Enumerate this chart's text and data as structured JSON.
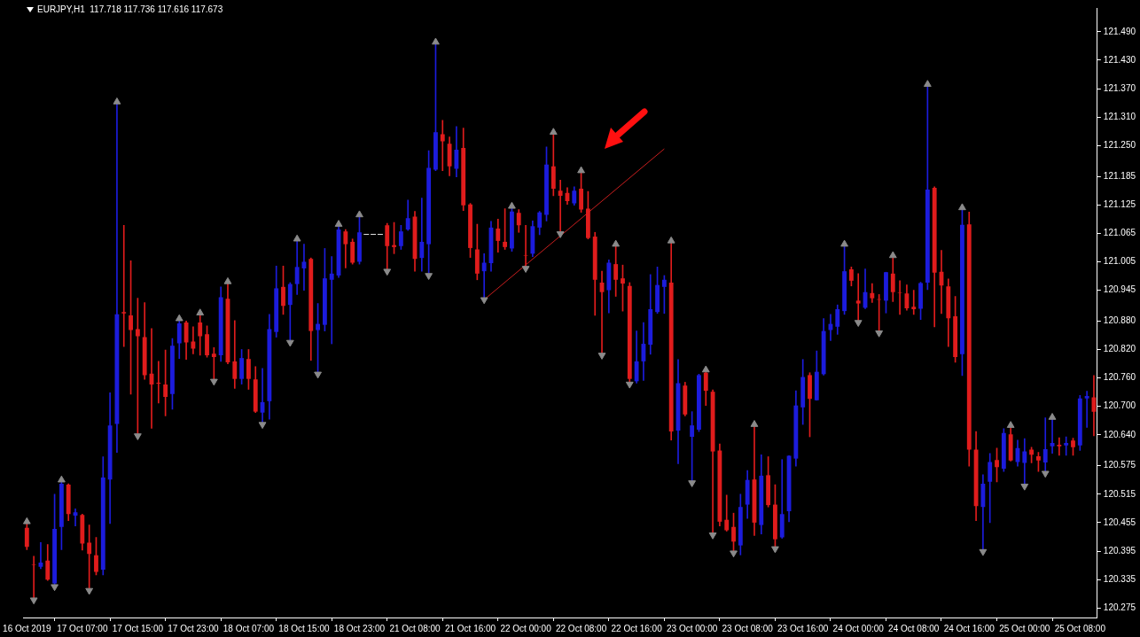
{
  "chart_data": {
    "type": "candlestick",
    "title": "EURJPY,H1  117.718 117.736 117.616 117.673",
    "categories": [
      "16 Oct 2019",
      null,
      null,
      null,
      null,
      null,
      null,
      null,
      "17 Oct 07:00",
      null,
      null,
      null,
      null,
      null,
      null,
      null,
      "17 Oct 15:00",
      null,
      null,
      null,
      null,
      null,
      null,
      null,
      "17 Oct 23:00",
      null,
      null,
      null,
      null,
      null,
      null,
      null,
      "18 Oct 07:00",
      null,
      null,
      null,
      null,
      null,
      null,
      null,
      "18 Oct 15:00",
      null,
      null,
      null,
      null,
      null,
      null,
      null,
      "18 Oct 23:00",
      null,
      null,
      null,
      null,
      null,
      null,
      null,
      "21 Oct 08:00",
      null,
      null,
      null,
      null,
      null,
      null,
      null,
      "21 Oct 16:00",
      null,
      null,
      null,
      null,
      null,
      null,
      null,
      "22 Oct 00:00",
      null,
      null,
      null,
      null,
      null,
      null,
      null,
      "22 Oct 08:00",
      null,
      null,
      null,
      null,
      null,
      null,
      null,
      "22 Oct 16:00",
      null,
      null,
      null,
      null,
      null,
      null,
      null,
      "23 Oct 00:00",
      null,
      null,
      null,
      null,
      null,
      null,
      null,
      "23 Oct 08:00",
      null,
      null,
      null,
      null,
      null,
      null,
      null,
      "23 Oct 16:00",
      null,
      null,
      null,
      null,
      null,
      null,
      null,
      "24 Oct 00:00",
      null,
      null,
      null,
      null,
      null,
      null,
      null,
      "24 Oct 08:00",
      null,
      null,
      null,
      null,
      null,
      null,
      null,
      "24 Oct 16:00",
      null,
      null,
      null,
      null,
      null,
      null,
      null,
      "25 Oct 00:00",
      null,
      null,
      null,
      null,
      null,
      null,
      null,
      "25 Oct 08:00",
      null,
      null
    ],
    "ohlc": [
      [
        120.444,
        120.457,
        120.398,
        120.404
      ],
      [
        120.366,
        120.384,
        120.292,
        120.365
      ],
      [
        120.362,
        120.413,
        120.358,
        120.371
      ],
      [
        120.375,
        120.409,
        120.333,
        120.335
      ],
      [
        120.327,
        120.515,
        120.32,
        120.442
      ],
      [
        120.446,
        120.545,
        120.398,
        120.537
      ],
      [
        120.535,
        120.537,
        120.459,
        120.473
      ],
      [
        120.47,
        120.484,
        120.448,
        120.477
      ],
      [
        120.471,
        120.473,
        120.397,
        120.411
      ],
      [
        120.413,
        120.45,
        120.312,
        120.389
      ],
      [
        120.386,
        120.424,
        120.345,
        120.351
      ],
      [
        120.356,
        120.594,
        120.345,
        120.55
      ],
      [
        120.546,
        120.729,
        120.453,
        120.66
      ],
      [
        120.663,
        121.342,
        120.603,
        120.894
      ],
      [
        120.899,
        121.082,
        120.826,
        120.896
      ],
      [
        120.892,
        121.007,
        120.726,
        120.861
      ],
      [
        120.863,
        120.928,
        120.638,
        120.848
      ],
      [
        120.846,
        120.919,
        120.757,
        120.766
      ],
      [
        120.769,
        120.864,
        120.654,
        120.746
      ],
      [
        120.75,
        120.795,
        120.707,
        120.748
      ],
      [
        120.746,
        120.819,
        120.68,
        120.72
      ],
      [
        120.726,
        120.843,
        120.694,
        120.828
      ],
      [
        120.833,
        120.885,
        120.801,
        120.875
      ],
      [
        120.877,
        120.88,
        120.799,
        120.835
      ],
      [
        120.837,
        120.868,
        120.811,
        120.822
      ],
      [
        120.877,
        120.897,
        120.808,
        120.848
      ],
      [
        120.852,
        120.87,
        120.804,
        120.808
      ],
      [
        120.811,
        120.824,
        120.753,
        120.804
      ],
      [
        120.808,
        120.952,
        120.795,
        120.93
      ],
      [
        120.927,
        120.963,
        120.79,
        120.793
      ],
      [
        120.795,
        120.881,
        120.738,
        120.758
      ],
      [
        120.758,
        120.82,
        120.747,
        120.802
      ],
      [
        120.8,
        120.82,
        120.736,
        120.758
      ],
      [
        120.757,
        120.784,
        120.687,
        120.689
      ],
      [
        120.687,
        120.78,
        120.662,
        120.709
      ],
      [
        120.711,
        120.894,
        120.673,
        120.863
      ],
      [
        120.857,
        120.996,
        120.846,
        120.949
      ],
      [
        120.952,
        120.996,
        120.894,
        120.912
      ],
      [
        120.914,
        120.961,
        120.835,
        120.958
      ],
      [
        120.958,
        121.053,
        120.936,
        120.994
      ],
      [
        120.991,
        121.042,
        120.945,
        121.005
      ],
      [
        121.011,
        121.013,
        120.797,
        120.859
      ],
      [
        120.861,
        120.917,
        120.768,
        120.874
      ],
      [
        120.872,
        121.033,
        120.859,
        120.97
      ],
      [
        120.967,
        121.016,
        120.832,
        120.98
      ],
      [
        120.976,
        121.084,
        120.972,
        121.073
      ],
      [
        121.069,
        121.073,
        120.992,
        121.042
      ],
      [
        121.047,
        121.053,
        121.0,
        121.003
      ],
      [
        121.005,
        121.104,
        121.0,
        121.067
      ],
      [
        121.063,
        121.063,
        121.063,
        121.063
      ],
      [
        121.063,
        121.063,
        121.063,
        121.063
      ],
      [
        121.063,
        121.063,
        121.063,
        121.063
      ],
      [
        121.082,
        121.086,
        120.985,
        121.038
      ],
      [
        121.04,
        121.088,
        121.022,
        121.036
      ],
      [
        121.038,
        121.082,
        121.031,
        121.069
      ],
      [
        121.073,
        121.135,
        121.071,
        121.097
      ],
      [
        121.1,
        121.111,
        120.985,
        121.011
      ],
      [
        121.013,
        121.139,
        120.985,
        121.047
      ],
      [
        121.042,
        121.239,
        120.976,
        121.203
      ],
      [
        121.199,
        121.468,
        121.197,
        121.278
      ],
      [
        121.274,
        121.303,
        121.197,
        121.259
      ],
      [
        121.254,
        121.268,
        121.186,
        121.206
      ],
      [
        121.201,
        121.29,
        121.184,
        121.241
      ],
      [
        121.245,
        121.287,
        121.113,
        121.124
      ],
      [
        121.126,
        121.128,
        121.014,
        121.034
      ],
      [
        121.031,
        121.084,
        120.967,
        120.98
      ],
      [
        120.985,
        121.022,
        120.925,
        121.003
      ],
      [
        121.002,
        121.09,
        120.985,
        121.077
      ],
      [
        121.075,
        121.095,
        121.025,
        121.049
      ],
      [
        121.047,
        121.117,
        121.031,
        121.036
      ],
      [
        121.033,
        121.122,
        121.027,
        121.111
      ],
      [
        121.108,
        121.115,
        121.067,
        121.082
      ],
      [
        121.019,
        121.082,
        120.991,
        121.018
      ],
      [
        121.022,
        121.091,
        121.016,
        121.08
      ],
      [
        121.077,
        121.111,
        121.062,
        121.109
      ],
      [
        121.104,
        121.247,
        121.091,
        121.21
      ],
      [
        121.206,
        121.278,
        121.144,
        121.159
      ],
      [
        121.155,
        121.177,
        121.064,
        121.144
      ],
      [
        121.15,
        121.161,
        121.126,
        121.133
      ],
      [
        121.128,
        121.163,
        121.124,
        121.155
      ],
      [
        121.159,
        121.197,
        121.109,
        121.115
      ],
      [
        121.117,
        121.153,
        121.053,
        121.055
      ],
      [
        121.058,
        121.067,
        120.892,
        120.967
      ],
      [
        120.961,
        120.985,
        120.808,
        120.941
      ],
      [
        120.945,
        121.009,
        120.897,
        121.003
      ],
      [
        121.0,
        121.042,
        120.932,
        120.967
      ],
      [
        120.97,
        120.998,
        120.901,
        120.959
      ],
      [
        120.954,
        120.961,
        120.747,
        120.758
      ],
      [
        120.753,
        120.859,
        120.749,
        120.795
      ],
      [
        120.795,
        120.877,
        120.755,
        120.832
      ],
      [
        120.83,
        120.978,
        120.81,
        120.905
      ],
      [
        120.899,
        120.994,
        120.896,
        120.956
      ],
      [
        120.952,
        120.976,
        120.896,
        120.967
      ],
      [
        120.961,
        121.049,
        120.629,
        120.647
      ],
      [
        120.649,
        120.799,
        120.579,
        120.749
      ],
      [
        120.744,
        120.751,
        120.68,
        120.683
      ],
      [
        120.636,
        120.689,
        120.539,
        120.66
      ],
      [
        120.651,
        120.768,
        120.647,
        120.766
      ],
      [
        120.771,
        120.777,
        120.702,
        120.733
      ],
      [
        120.731,
        120.735,
        120.429,
        120.605
      ],
      [
        120.607,
        120.621,
        120.448,
        120.457
      ],
      [
        120.461,
        120.513,
        120.437,
        120.439
      ],
      [
        120.446,
        120.475,
        120.391,
        120.415
      ],
      [
        120.407,
        120.515,
        120.387,
        120.488
      ],
      [
        120.493,
        120.565,
        120.464,
        120.545
      ],
      [
        120.546,
        120.662,
        120.428,
        120.455
      ],
      [
        120.45,
        120.598,
        120.431,
        120.554
      ],
      [
        120.555,
        120.594,
        120.488,
        120.492
      ],
      [
        120.493,
        120.535,
        120.4,
        120.42
      ],
      [
        120.424,
        120.588,
        120.422,
        120.473
      ],
      [
        120.479,
        120.596,
        120.457,
        120.596
      ],
      [
        120.59,
        120.733,
        120.574,
        120.702
      ],
      [
        120.698,
        120.799,
        120.662,
        120.762
      ],
      [
        120.766,
        120.771,
        120.636,
        120.716
      ],
      [
        120.713,
        120.817,
        120.713,
        120.773
      ],
      [
        120.768,
        120.885,
        120.766,
        120.859
      ],
      [
        120.861,
        120.894,
        120.839,
        120.874
      ],
      [
        120.868,
        120.914,
        120.852,
        120.905
      ],
      [
        120.901,
        121.042,
        120.894,
        120.985
      ],
      [
        120.989,
        120.994,
        120.954,
        120.965
      ],
      [
        120.923,
        120.98,
        120.877,
        120.917
      ],
      [
        120.908,
        120.99,
        120.906,
        120.941
      ],
      [
        120.939,
        120.959,
        120.919,
        120.928
      ],
      [
        120.926,
        120.936,
        120.855,
        120.925
      ],
      [
        120.923,
        120.983,
        120.897,
        120.983
      ],
      [
        120.98,
        121.018,
        120.921,
        120.941
      ],
      [
        120.94,
        120.965,
        120.894,
        120.939
      ],
      [
        120.938,
        120.956,
        120.903,
        120.907
      ],
      [
        120.91,
        120.945,
        120.894,
        120.905
      ],
      [
        120.906,
        120.962,
        120.883,
        120.96
      ],
      [
        120.961,
        121.379,
        120.946,
        121.157
      ],
      [
        121.161,
        121.163,
        120.868,
        120.982
      ],
      [
        120.984,
        121.029,
        120.896,
        120.955
      ],
      [
        120.953,
        120.969,
        120.826,
        120.886
      ],
      [
        120.89,
        120.932,
        120.793,
        120.804
      ],
      [
        120.81,
        121.119,
        120.765,
        121.083
      ],
      [
        121.084,
        121.11,
        120.574,
        120.609
      ],
      [
        120.609,
        120.647,
        120.459,
        120.49
      ],
      [
        120.488,
        120.556,
        120.394,
        120.537
      ],
      [
        120.541,
        120.601,
        120.455,
        120.583
      ],
      [
        120.587,
        120.612,
        120.541,
        120.572
      ],
      [
        120.569,
        120.653,
        120.563,
        120.644
      ],
      [
        120.641,
        120.66,
        120.585,
        120.586
      ],
      [
        120.583,
        120.629,
        120.574,
        120.612
      ],
      [
        120.581,
        120.632,
        120.532,
        120.605
      ],
      [
        120.609,
        120.614,
        120.581,
        120.598
      ],
      [
        120.595,
        120.603,
        120.563,
        120.586
      ],
      [
        120.582,
        120.676,
        120.559,
        120.61
      ],
      [
        120.616,
        120.677,
        120.601,
        120.623
      ],
      [
        120.619,
        120.634,
        120.597,
        120.616
      ],
      [
        120.618,
        120.636,
        120.597,
        120.623
      ],
      [
        120.628,
        120.633,
        120.597,
        120.614
      ],
      [
        120.618,
        120.723,
        120.607,
        120.717
      ],
      [
        120.717,
        120.732,
        120.656,
        120.722
      ],
      [
        120.719,
        120.765,
        120.638,
        120.689
      ]
    ],
    "series": [
      {
        "type": "scatter",
        "marker": "triangle",
        "color": "#8a8a8a",
        "values": [
          120.457,
          null,
          null,
          null,
          null,
          120.545,
          null,
          null,
          null,
          null,
          null,
          null,
          null,
          121.342,
          null,
          null,
          null,
          null,
          null,
          null,
          null,
          null,
          120.885,
          null,
          null,
          120.897,
          null,
          null,
          null,
          120.963,
          null,
          null,
          null,
          null,
          null,
          null,
          null,
          null,
          null,
          121.053,
          null,
          null,
          null,
          null,
          null,
          121.084,
          null,
          null,
          121.104,
          null,
          null,
          null,
          null,
          null,
          null,
          null,
          null,
          null,
          null,
          121.468,
          null,
          null,
          null,
          null,
          null,
          null,
          null,
          null,
          null,
          null,
          121.122,
          null,
          null,
          null,
          null,
          null,
          121.278,
          null,
          null,
          null,
          121.197,
          null,
          null,
          null,
          null,
          121.042,
          null,
          null,
          null,
          null,
          null,
          null,
          null,
          121.049,
          null,
          null,
          null,
          null,
          120.777,
          null,
          null,
          null,
          null,
          null,
          null,
          120.662,
          null,
          null,
          null,
          null,
          null,
          null,
          null,
          null,
          null,
          null,
          null,
          null,
          121.042,
          null,
          null,
          null,
          null,
          null,
          null,
          121.018,
          null,
          null,
          null,
          null,
          121.379,
          null,
          null,
          null,
          null,
          121.119,
          null,
          null,
          null,
          null,
          null,
          null,
          120.66,
          null,
          null,
          null,
          null,
          null,
          120.677,
          null,
          null,
          null,
          null,
          null,
          null
        ]
      },
      {
        "type": "scatter",
        "marker": "triangle",
        "color": "#8a8a8a",
        "values": [
          null,
          120.292,
          null,
          null,
          120.32,
          null,
          null,
          null,
          null,
          120.312,
          null,
          null,
          null,
          null,
          null,
          null,
          120.638,
          null,
          null,
          null,
          null,
          null,
          null,
          null,
          null,
          null,
          null,
          120.753,
          null,
          null,
          null,
          null,
          null,
          null,
          120.662,
          null,
          null,
          null,
          120.835,
          null,
          null,
          null,
          120.768,
          null,
          null,
          null,
          null,
          null,
          null,
          null,
          null,
          null,
          120.985,
          null,
          null,
          null,
          null,
          null,
          120.976,
          null,
          null,
          null,
          null,
          null,
          null,
          null,
          120.925,
          null,
          null,
          null,
          null,
          null,
          120.991,
          null,
          null,
          null,
          null,
          121.064,
          null,
          null,
          null,
          null,
          null,
          120.808,
          null,
          null,
          null,
          120.747,
          null,
          null,
          null,
          null,
          null,
          null,
          null,
          null,
          120.539,
          null,
          null,
          120.429,
          null,
          null,
          120.391,
          null,
          null,
          null,
          null,
          null,
          120.4,
          null,
          null,
          null,
          null,
          null,
          null,
          null,
          null,
          null,
          null,
          null,
          120.877,
          null,
          null,
          120.855,
          null,
          null,
          null,
          null,
          null,
          null,
          null,
          null,
          null,
          null,
          null,
          null,
          null,
          null,
          120.394,
          null,
          null,
          null,
          null,
          null,
          120.532,
          null,
          null,
          120.559,
          null,
          null,
          null,
          null,
          null,
          null,
          null
        ]
      },
      {
        "type": "line",
        "color": "#c81e1e",
        "values": [
          null,
          null,
          null,
          null,
          null,
          null,
          null,
          null,
          null,
          null,
          null,
          null,
          null,
          null,
          null,
          null,
          null,
          null,
          null,
          null,
          null,
          null,
          null,
          null,
          null,
          null,
          null,
          null,
          null,
          null,
          null,
          null,
          null,
          null,
          null,
          null,
          null,
          null,
          null,
          null,
          null,
          null,
          null,
          null,
          null,
          null,
          null,
          null,
          null,
          null,
          null,
          null,
          null,
          null,
          null,
          null,
          null,
          null,
          null,
          null,
          null,
          null,
          null,
          null,
          null,
          null,
          120.925,
          null,
          null,
          null,
          null,
          null,
          null,
          null,
          null,
          null,
          null,
          null,
          null,
          null,
          null,
          null,
          null,
          null,
          null,
          null,
          null,
          null,
          null,
          null,
          null,
          null,
          121.243,
          null,
          null,
          null,
          null,
          null,
          null,
          null,
          null,
          null,
          null,
          null,
          null,
          null,
          null,
          null,
          null,
          null,
          null,
          null,
          null,
          null,
          null,
          null,
          null,
          null,
          null,
          null,
          null,
          null,
          null,
          null,
          null,
          null,
          null,
          null,
          null,
          null,
          null,
          null,
          null,
          null,
          null,
          null,
          null,
          null,
          null,
          null,
          null,
          null,
          null,
          null,
          null,
          null,
          null,
          null,
          null,
          null,
          null,
          null,
          null,
          null,
          null
        ]
      }
    ],
    "ylim": [
      120.255,
      121.54
    ],
    "yticks": [
      {
        "value": 121.49,
        "label": "121.490"
      },
      {
        "value": 121.43,
        "label": "121.430"
      },
      {
        "value": 121.37,
        "label": "121.370"
      },
      {
        "value": 121.31,
        "label": "121.310"
      },
      {
        "value": 121.25,
        "label": "121.250"
      },
      121.185,
      121.125,
      121.065,
      121.005,
      120.945,
      {
        "value": 120.88,
        "label": "120.880"
      },
      {
        "value": 120.82,
        "label": "120.820"
      },
      {
        "value": 120.76,
        "label": "120.760"
      },
      {
        "value": 120.7,
        "label": "120.700"
      },
      {
        "value": 120.64,
        "label": "120.640"
      },
      120.575,
      120.515,
      120.455,
      120.395,
      120.335,
      120.275
    ]
  }
}
